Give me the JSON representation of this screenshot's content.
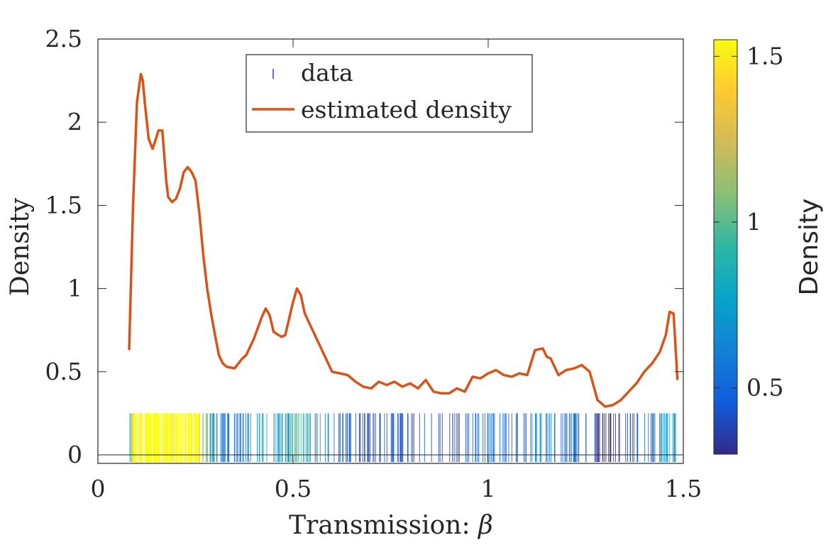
{
  "chart_data": {
    "type": "line",
    "title": "",
    "xlabel": "Transmission: ",
    "xlabel_symbol": "β",
    "ylabel": "Density",
    "xlim": [
      0,
      1.5
    ],
    "ylim": [
      0,
      2.5
    ],
    "xticks": [
      0,
      0.5,
      1,
      1.5
    ],
    "xtick_labels": [
      "0",
      "0.5",
      "1",
      "1.5"
    ],
    "yticks": [
      0,
      0.5,
      1,
      1.5,
      2,
      2.5
    ],
    "ytick_labels": [
      "0",
      "0.5",
      "1",
      "1.5",
      "2",
      "2.5"
    ],
    "legend": {
      "position": "top-center",
      "entries": [
        "data",
        "estimated density"
      ]
    },
    "series": [
      {
        "name": "estimated density",
        "color": "#D95319",
        "x": [
          0.08,
          0.09,
          0.1,
          0.11,
          0.115,
          0.12,
          0.13,
          0.14,
          0.15,
          0.155,
          0.165,
          0.17,
          0.175,
          0.18,
          0.19,
          0.2,
          0.21,
          0.22,
          0.23,
          0.24,
          0.25,
          0.26,
          0.27,
          0.28,
          0.29,
          0.3,
          0.31,
          0.32,
          0.33,
          0.35,
          0.37,
          0.38,
          0.4,
          0.42,
          0.43,
          0.44,
          0.45,
          0.47,
          0.48,
          0.5,
          0.51,
          0.52,
          0.53,
          0.55,
          0.57,
          0.59,
          0.6,
          0.62,
          0.64,
          0.66,
          0.68,
          0.7,
          0.72,
          0.74,
          0.76,
          0.78,
          0.8,
          0.82,
          0.84,
          0.86,
          0.88,
          0.9,
          0.92,
          0.94,
          0.96,
          0.98,
          1.0,
          1.02,
          1.04,
          1.06,
          1.08,
          1.1,
          1.12,
          1.14,
          1.15,
          1.16,
          1.18,
          1.2,
          1.22,
          1.24,
          1.26,
          1.28,
          1.3,
          1.32,
          1.34,
          1.36,
          1.38,
          1.4,
          1.42,
          1.44,
          1.455,
          1.465,
          1.475,
          1.485
        ],
        "values": [
          0.63,
          1.5,
          2.12,
          2.29,
          2.25,
          2.12,
          1.9,
          1.84,
          1.91,
          1.95,
          1.95,
          1.8,
          1.65,
          1.55,
          1.52,
          1.54,
          1.6,
          1.7,
          1.73,
          1.7,
          1.65,
          1.45,
          1.2,
          1.0,
          0.85,
          0.72,
          0.6,
          0.55,
          0.53,
          0.52,
          0.58,
          0.6,
          0.7,
          0.83,
          0.88,
          0.84,
          0.74,
          0.71,
          0.72,
          0.92,
          1.0,
          0.96,
          0.85,
          0.75,
          0.65,
          0.55,
          0.5,
          0.49,
          0.48,
          0.44,
          0.41,
          0.4,
          0.44,
          0.42,
          0.44,
          0.41,
          0.43,
          0.4,
          0.45,
          0.38,
          0.37,
          0.37,
          0.4,
          0.38,
          0.47,
          0.46,
          0.49,
          0.51,
          0.48,
          0.47,
          0.49,
          0.48,
          0.63,
          0.64,
          0.59,
          0.58,
          0.48,
          0.51,
          0.52,
          0.54,
          0.5,
          0.33,
          0.29,
          0.3,
          0.33,
          0.38,
          0.43,
          0.5,
          0.55,
          0.62,
          0.72,
          0.86,
          0.85,
          0.45
        ]
      },
      {
        "name": "data",
        "type": "rug",
        "x_range": [
          0.08,
          1.485
        ],
        "count": 420,
        "rug_height": 0.25
      }
    ],
    "colorbar": {
      "label": "Density",
      "range": [
        0.3,
        1.55
      ],
      "ticks": [
        0.5,
        1,
        1.5
      ],
      "tick_labels": [
        "0.5",
        "1",
        "1.5"
      ],
      "colormap": "parula",
      "colors": [
        "#352A87",
        "#0F5CDD",
        "#1481D6",
        "#06A4CA",
        "#2EB7A4",
        "#87BF77",
        "#D1BB59",
        "#FEC832",
        "#F9FB0E"
      ]
    },
    "grid": false
  }
}
